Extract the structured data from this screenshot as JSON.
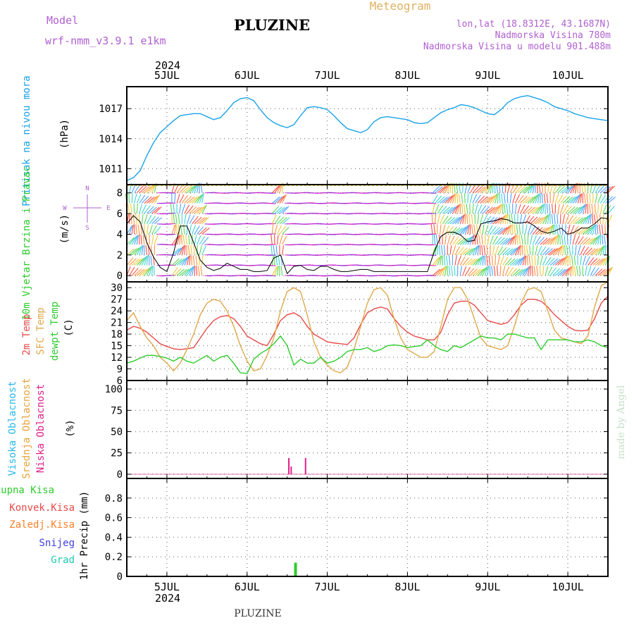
{
  "header": {
    "model_label": "Model",
    "model_name": "wrf-nmm_v3.9.1 e1km",
    "station": "PLUZINE",
    "product": "Meteogram",
    "lonlat": "lon,lat (18.8312E, 43.1687N)",
    "elevation": "Nadmorska Visina 780m",
    "model_elevation": "Nadmorska Visina u modelu 901.488m",
    "year": "2024",
    "footer_station": "PLUZINE",
    "watermark": "made by Angel"
  },
  "colors": {
    "pressure": "#1aa3e8",
    "temp2m": "#e84848",
    "sfc_temp": "#e0a84a",
    "dewpoint": "#2ecc2e",
    "high_cloud": "#2ab8e8",
    "mid_cloud": "#e8a23a",
    "low_cloud": "#e0208a",
    "total_precip": "#2ecc2e",
    "conv_precip": "#e84848",
    "frozen_precip": "#ff7f27",
    "snow": "#4040e0",
    "graupel": "#20c8b0",
    "wind_speed": "#000000"
  },
  "chart_data": [
    {
      "type": "line",
      "title": "",
      "ylabel": "Pritisak na nivou mora",
      "unit": "(hPa)",
      "ylim": [
        1009.4,
        1019.2
      ],
      "yticks": [
        1011,
        1014,
        1017
      ],
      "xlim": [
        0,
        144
      ],
      "x_tick_labels": [
        "5JUL",
        "6JUL",
        "7JUL",
        "8JUL",
        "9JUL",
        "10JUL"
      ],
      "grid": true,
      "series": [
        {
          "key": "pressure",
          "x": [
            0,
            2,
            4,
            6,
            8,
            10,
            12,
            14,
            16,
            18,
            20,
            22,
            24,
            26,
            28,
            30,
            32,
            34,
            36,
            38,
            40,
            42,
            44,
            46,
            48,
            50,
            52,
            54,
            56,
            58,
            60,
            62,
            64,
            66,
            68,
            70,
            72,
            74,
            76,
            78,
            80,
            82,
            84,
            86,
            88,
            90,
            92,
            94,
            96,
            98,
            100,
            102,
            104,
            106,
            108,
            110,
            112,
            114,
            116,
            118,
            120,
            122,
            124,
            126,
            128,
            130,
            132,
            134,
            136,
            138,
            140,
            142,
            144
          ],
          "values": [
            1009.8,
            1010.1,
            1010.8,
            1012.3,
            1013.6,
            1014.6,
            1015.2,
            1015.8,
            1016.3,
            1016.4,
            1016.5,
            1016.5,
            1016.2,
            1015.9,
            1016.1,
            1016.8,
            1017.6,
            1018.0,
            1018.1,
            1017.8,
            1016.9,
            1016.1,
            1015.6,
            1015.3,
            1015.1,
            1015.4,
            1016.3,
            1017.1,
            1017.2,
            1017.1,
            1016.9,
            1016.3,
            1015.6,
            1015.0,
            1014.8,
            1014.6,
            1014.9,
            1015.7,
            1016.1,
            1016.2,
            1016.1,
            1016.0,
            1015.9,
            1015.6,
            1015.5,
            1015.6,
            1016.1,
            1016.6,
            1016.9,
            1017.1,
            1017.4,
            1017.3,
            1017.1,
            1016.8,
            1016.5,
            1016.4,
            1016.9,
            1017.6,
            1018.0,
            1018.2,
            1018.3,
            1018.1,
            1017.9,
            1017.6,
            1017.2,
            1017.0,
            1016.8,
            1016.5,
            1016.3,
            1016.1,
            1016.0,
            1015.9,
            1015.8
          ]
        }
      ]
    },
    {
      "type": "line",
      "title": "",
      "ylabel": "10m Vjetar Brzina i Pravac",
      "unit": "(m/s)",
      "compass": [
        "N",
        "W",
        "E",
        "S"
      ],
      "ylim": [
        -0.6,
        8.8
      ],
      "yticks": [
        0,
        2,
        4,
        6,
        8
      ],
      "xlim": [
        0,
        144
      ],
      "x_tick_labels": [
        "5JUL",
        "6JUL",
        "7JUL",
        "8JUL",
        "9JUL",
        "10JUL"
      ],
      "grid": true,
      "series": [
        {
          "name": "Brzina",
          "key": "wind_speed",
          "x": [
            0,
            2,
            4,
            6,
            8,
            10,
            12,
            14,
            16,
            18,
            20,
            22,
            24,
            26,
            28,
            30,
            32,
            34,
            36,
            38,
            40,
            42,
            44,
            46,
            48,
            50,
            52,
            54,
            56,
            58,
            60,
            62,
            64,
            66,
            68,
            70,
            72,
            74,
            76,
            78,
            80,
            82,
            84,
            86,
            88,
            90,
            92,
            94,
            96,
            98,
            100,
            102,
            104,
            106,
            108,
            110,
            112,
            114,
            116,
            118,
            120,
            122,
            124,
            126,
            128,
            130,
            132,
            134,
            136,
            138,
            140,
            142,
            144
          ],
          "values": [
            5.0,
            5.8,
            5.2,
            3.2,
            1.8,
            0.8,
            0.4,
            2.2,
            4.8,
            4.8,
            3.2,
            1.5,
            0.8,
            0.5,
            0.7,
            1.2,
            0.9,
            0.6,
            0.6,
            0.4,
            0.4,
            0.5,
            1.7,
            2.0,
            0.2,
            0.9,
            1.0,
            0.6,
            0.5,
            0.9,
            0.9,
            0.6,
            0.4,
            0.4,
            0.5,
            0.6,
            0.6,
            0.4,
            0.4,
            0.4,
            0.4,
            0.4,
            0.4,
            0.4,
            0.4,
            0.4,
            2.3,
            3.8,
            4.2,
            4.2,
            3.9,
            3.3,
            3.4,
            5.0,
            5.2,
            5.3,
            5.5,
            5.4,
            5.1,
            5.1,
            5.2,
            4.8,
            4.3,
            4.1,
            4.3,
            4.6,
            4.0,
            4.2,
            4.6,
            4.6,
            5.0,
            5.6,
            5.5
          ]
        }
      ]
    },
    {
      "type": "line",
      "title": "",
      "ylabel": "2m Temp SFC Temp dewpt Temp",
      "unit": "(C)",
      "ylim": [
        6,
        31.5
      ],
      "yticks": [
        6,
        9,
        12,
        15,
        18,
        21,
        24,
        27,
        30
      ],
      "xlim": [
        0,
        144
      ],
      "x_tick_labels": [
        "5JUL",
        "6JUL",
        "7JUL",
        "8JUL",
        "9JUL",
        "10JUL"
      ],
      "grid": true,
      "series": [
        {
          "name": "2m Temp",
          "key": "temp2m",
          "x": [
            0,
            2,
            4,
            6,
            8,
            10,
            12,
            14,
            16,
            18,
            20,
            22,
            24,
            26,
            28,
            30,
            32,
            34,
            36,
            38,
            40,
            42,
            44,
            46,
            48,
            50,
            52,
            54,
            56,
            58,
            60,
            62,
            64,
            66,
            68,
            70,
            72,
            74,
            76,
            78,
            80,
            82,
            84,
            86,
            88,
            90,
            92,
            94,
            96,
            98,
            100,
            102,
            104,
            106,
            108,
            110,
            112,
            114,
            116,
            118,
            120,
            122,
            124,
            126,
            128,
            130,
            132,
            134,
            136,
            138,
            140,
            142,
            144
          ],
          "values": [
            19,
            20,
            19.5,
            18.5,
            17,
            15.5,
            14.8,
            14.2,
            14,
            14.2,
            14.5,
            17,
            19.5,
            21.5,
            22.5,
            22.8,
            22,
            20,
            17.5,
            16.5,
            15.5,
            15,
            18,
            21.5,
            23,
            23.5,
            22.5,
            20,
            18,
            17,
            16,
            15.7,
            15.5,
            15.3,
            17,
            20.5,
            23.5,
            24.5,
            25,
            24.5,
            22,
            20,
            18.5,
            17.5,
            17,
            16.5,
            16.5,
            18.5,
            23,
            26,
            26.5,
            26.5,
            25.5,
            23.5,
            21.5,
            21,
            20.5,
            21,
            23,
            25.5,
            27,
            27,
            26.5,
            25,
            23,
            21.5,
            20,
            19,
            18.8,
            19,
            22,
            26,
            27.8
          ]
        },
        {
          "name": "SFC Temp",
          "key": "sfc_temp",
          "x": [
            0,
            2,
            4,
            6,
            8,
            10,
            12,
            14,
            16,
            18,
            20,
            22,
            24,
            26,
            28,
            30,
            32,
            34,
            36,
            38,
            40,
            42,
            44,
            46,
            48,
            50,
            52,
            54,
            56,
            58,
            60,
            62,
            64,
            66,
            68,
            70,
            72,
            74,
            76,
            78,
            80,
            82,
            84,
            86,
            88,
            90,
            92,
            94,
            96,
            98,
            100,
            102,
            104,
            106,
            108,
            110,
            112,
            114,
            116,
            118,
            120,
            122,
            124,
            126,
            128,
            130,
            132,
            134,
            136,
            138,
            140,
            142,
            144
          ],
          "values": [
            21.5,
            23.5,
            20,
            17,
            15,
            12,
            10.5,
            8.5,
            10.5,
            14,
            18,
            23,
            26,
            27,
            26.5,
            24,
            20,
            15,
            11,
            8.5,
            9,
            12.5,
            17,
            24,
            29,
            30,
            29,
            23,
            16,
            12,
            10,
            8.5,
            8,
            9.5,
            14,
            20,
            26,
            29.5,
            30,
            28,
            22,
            17,
            14,
            13,
            12,
            12,
            13.5,
            20,
            27,
            30,
            30,
            27,
            22,
            17,
            15,
            14.5,
            14,
            15,
            20,
            26,
            29.5,
            30,
            29,
            24,
            19,
            17,
            16.5,
            16,
            15.5,
            17.5,
            25,
            30.5,
            31.5
          ]
        },
        {
          "name": "dewpt Temp",
          "key": "dewpoint",
          "x": [
            0,
            2,
            4,
            6,
            8,
            10,
            12,
            14,
            16,
            18,
            20,
            22,
            24,
            26,
            28,
            30,
            32,
            34,
            36,
            38,
            40,
            42,
            44,
            46,
            48,
            50,
            52,
            54,
            56,
            58,
            60,
            62,
            64,
            66,
            68,
            70,
            72,
            74,
            76,
            78,
            80,
            82,
            84,
            86,
            88,
            90,
            92,
            94,
            96,
            98,
            100,
            102,
            104,
            106,
            108,
            110,
            112,
            114,
            116,
            118,
            120,
            122,
            124,
            126,
            128,
            130,
            132,
            134,
            136,
            138,
            140,
            142,
            144
          ],
          "values": [
            10.5,
            11,
            11.8,
            12.5,
            12.5,
            12.2,
            11.8,
            11,
            12,
            11,
            10.5,
            11.5,
            12.5,
            11,
            12,
            12.5,
            10.5,
            8,
            7.8,
            11.5,
            13,
            14,
            15.5,
            17.5,
            15,
            10,
            11.5,
            10.5,
            10.5,
            12,
            10.5,
            11,
            12,
            13.5,
            14,
            14,
            14.5,
            13.5,
            14,
            15,
            15.2,
            15,
            14.5,
            14.8,
            15,
            16.5,
            15,
            14,
            13.5,
            15,
            14.5,
            15.5,
            16.5,
            17.5,
            17,
            17,
            16.5,
            18,
            18,
            17.5,
            17,
            17,
            14,
            16.5,
            16.5,
            16.5,
            16.5,
            16,
            16,
            16.5,
            16,
            15,
            14.5
          ]
        }
      ]
    },
    {
      "type": "bar",
      "title": "",
      "ylabel": "Visoka Oblacnost Srednja Oblacnost Niska Oblacnost",
      "unit": "(%)",
      "ylim": [
        -5,
        110
      ],
      "yticks": [
        0,
        25,
        50,
        75,
        100
      ],
      "xlim": [
        0,
        144
      ],
      "x_tick_labels": [
        "5JUL",
        "6JUL",
        "7JUL",
        "8JUL",
        "9JUL",
        "10JUL"
      ],
      "grid": true,
      "series": [
        {
          "name": "Visoka Oblacnost",
          "key": "high_cloud",
          "x": [
            99
          ],
          "values": [
            0.5
          ]
        },
        {
          "name": "Srednja Oblacnost",
          "key": "mid_cloud",
          "x": [],
          "values": []
        },
        {
          "name": "Niska Oblacnost",
          "key": "low_cloud",
          "x": [
            48.5,
            49.2,
            53.5
          ],
          "values": [
            19,
            9,
            19
          ]
        }
      ]
    },
    {
      "type": "bar",
      "title": "",
      "ylabel": "1hr Precip (mm)",
      "ylim": [
        0,
        1.0
      ],
      "yticks": [
        0,
        0.2,
        0.4,
        0.6,
        0.8
      ],
      "ytick_labels": [
        "0",
        "0.2",
        "0.4",
        "0.6",
        "0.8"
      ],
      "xlim": [
        0,
        144
      ],
      "x_tick_labels": [
        "5JUL",
        "6JUL",
        "7JUL",
        "8JUL",
        "9JUL",
        "10JUL"
      ],
      "grid": true,
      "series": [
        {
          "name": "Ukupna Kisa",
          "key": "total_precip",
          "x": [
            50.5
          ],
          "values": [
            0.14
          ]
        },
        {
          "name": "Konvek.Kisa",
          "key": "conv_precip",
          "x": [],
          "values": []
        },
        {
          "name": "Zaledj.Kisa",
          "key": "frozen_precip",
          "x": [],
          "values": []
        },
        {
          "name": "Snijeg",
          "key": "snow",
          "x": [],
          "values": []
        },
        {
          "name": "Grad",
          "key": "graupel",
          "x": [],
          "values": []
        }
      ]
    }
  ]
}
